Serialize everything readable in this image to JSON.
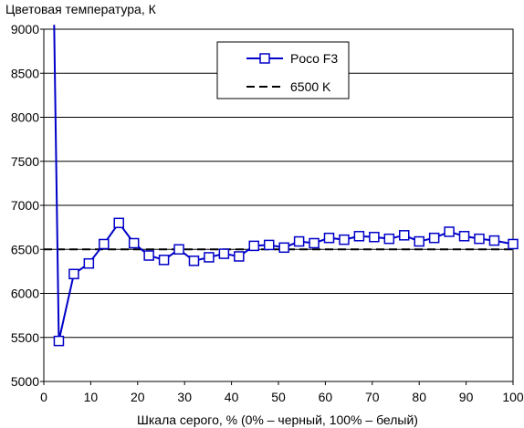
{
  "chart_data": {
    "type": "line",
    "title": "",
    "ylabel": "Цветовая температура, К",
    "xlabel": "Шкала серого, % (0% – черный, 100% – белый)",
    "xlim": [
      0,
      100
    ],
    "ylim": [
      5000,
      9000
    ],
    "xticks": [
      0,
      10,
      20,
      30,
      40,
      50,
      60,
      70,
      80,
      90,
      100
    ],
    "yticks": [
      5000,
      5500,
      6000,
      6500,
      7000,
      7500,
      8000,
      8500,
      9000
    ],
    "grid": "horizontal",
    "legend_position": "top-center",
    "series": [
      {
        "name": "Poco F3",
        "color": "#0000c8",
        "marker": "square",
        "x": [
          2.2,
          3.2,
          6.4,
          9.6,
          12.8,
          16.0,
          19.2,
          22.4,
          25.6,
          28.8,
          32.0,
          35.2,
          38.4,
          41.6,
          44.8,
          48.0,
          51.2,
          54.4,
          57.6,
          60.8,
          64.0,
          67.2,
          70.4,
          73.6,
          76.8,
          80.0,
          83.2,
          86.4,
          89.6,
          92.8,
          96.0,
          100
        ],
        "y": [
          9050,
          5460,
          6220,
          6340,
          6560,
          6800,
          6570,
          6430,
          6380,
          6500,
          6370,
          6410,
          6450,
          6420,
          6540,
          6550,
          6520,
          6590,
          6570,
          6630,
          6610,
          6650,
          6640,
          6620,
          6660,
          6590,
          6630,
          6700,
          6650,
          6620,
          6600,
          6560
        ]
      },
      {
        "name": "6500 K",
        "color": "#000000",
        "style": "dashed",
        "x": [
          0,
          100
        ],
        "y": [
          6500,
          6500
        ]
      }
    ]
  }
}
